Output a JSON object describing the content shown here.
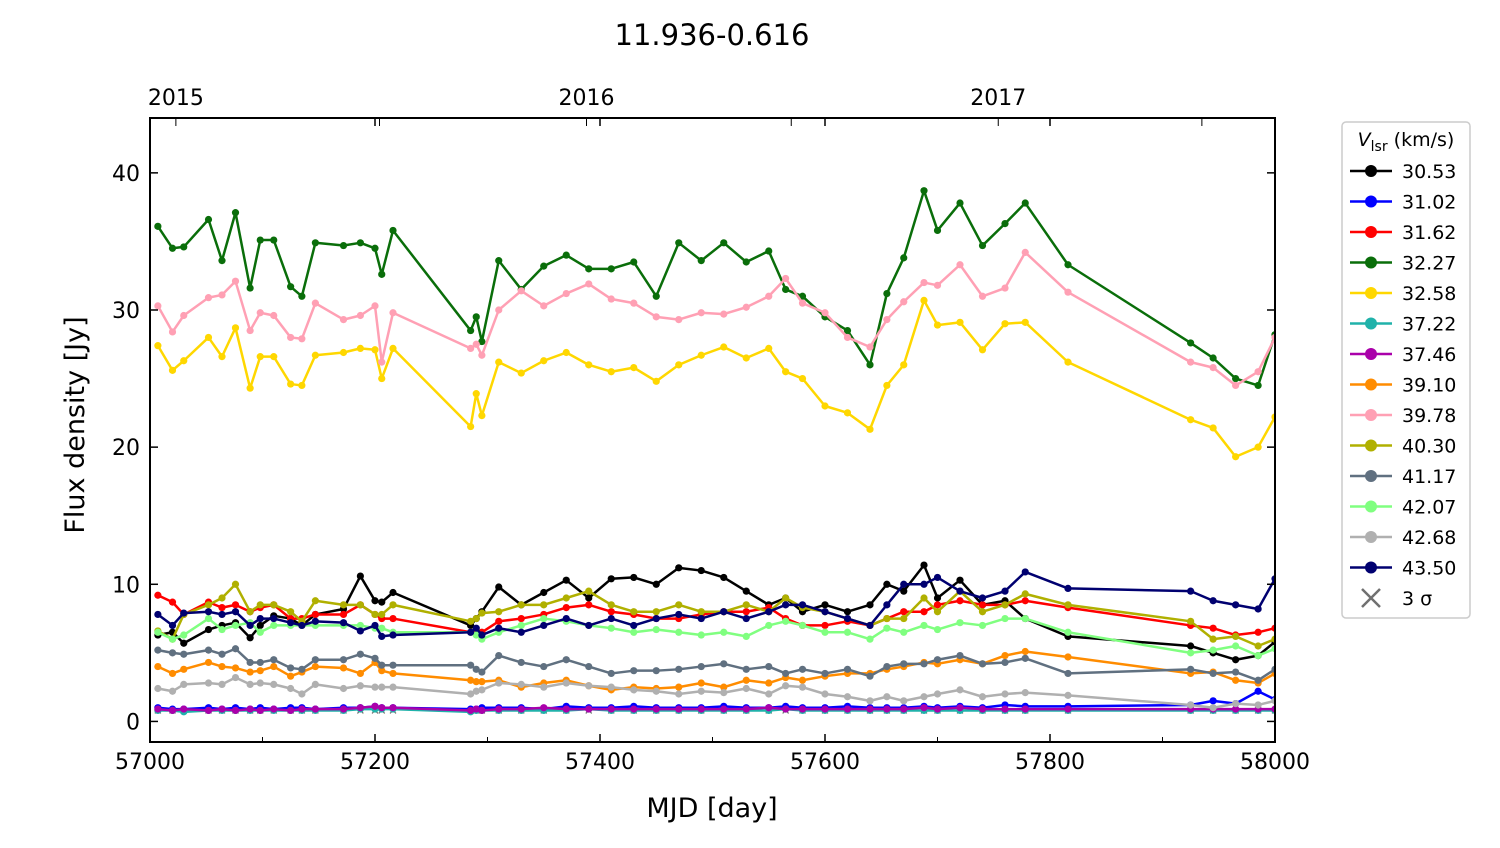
{
  "chart_data": {
    "type": "line",
    "title": "11.936-0.616",
    "xlabel": "MJD [day]",
    "ylabel": "Flux density [Jy]",
    "xlim": [
      57000,
      58000
    ],
    "ylim": [
      -1.5,
      44
    ],
    "xticks": [
      57000,
      57200,
      57400,
      57600,
      57800,
      58000
    ],
    "xticklabels": [
      "57000",
      "57200",
      "57400",
      "57600",
      "57800",
      "58000"
    ],
    "yticks": [
      0,
      10,
      20,
      30,
      40
    ],
    "yticklabels": [
      "0",
      "10",
      "20",
      "30",
      "40"
    ],
    "top_axis": {
      "ticks_mjd": [
        57023,
        57204,
        57388,
        57570,
        57754,
        57935
      ],
      "labels": [
        {
          "mjd": 57023,
          "text": "2015"
        },
        {
          "mjd": 57388,
          "text": "2016"
        },
        {
          "mjd": 57754,
          "text": "2017"
        }
      ]
    },
    "legend": {
      "placement": "outside-right",
      "title_main": "V",
      "title_sub": "lsr",
      "title_units": " (km/s)",
      "sigma_label": "3 σ"
    },
    "x": [
      57007,
      57020,
      57030,
      57052,
      57064,
      57076,
      57089,
      57098,
      57110,
      57125,
      57135,
      57147,
      57172,
      57187,
      57200,
      57206,
      57216,
      57285,
      57290,
      57295,
      57310,
      57330,
      57350,
      57370,
      57390,
      57410,
      57430,
      57450,
      57470,
      57490,
      57510,
      57530,
      57550,
      57565,
      57580,
      57600,
      57620,
      57640,
      57655,
      57670,
      57688,
      57700,
      57720,
      57740,
      57760,
      57778,
      57816,
      57925,
      57945,
      57965,
      57985,
      58000
    ],
    "series": [
      {
        "name": "30.53",
        "color": "#000000",
        "values": [
          6.3,
          6.5,
          5.7,
          6.7,
          7.0,
          7.2,
          6.1,
          7.0,
          7.7,
          7.5,
          7.0,
          7.8,
          8.2,
          10.6,
          8.8,
          8.7,
          9.4,
          7.0,
          7.5,
          8.0,
          9.8,
          8.5,
          9.4,
          10.3,
          9.0,
          10.4,
          10.5,
          10.0,
          11.2,
          11.0,
          10.5,
          9.5,
          8.5,
          9.0,
          8.0,
          8.5,
          8.0,
          8.5,
          10.0,
          9.5,
          11.4,
          9.0,
          10.3,
          8.5,
          8.8,
          7.5,
          6.2,
          5.5,
          5.0,
          4.5,
          4.8,
          5.8
        ]
      },
      {
        "name": "31.02",
        "color": "#0000ff",
        "values": [
          1.0,
          0.9,
          0.9,
          1.0,
          0.9,
          1.0,
          0.9,
          1.0,
          0.9,
          1.0,
          1.0,
          0.9,
          1.0,
          1.0,
          1.1,
          1.0,
          1.0,
          0.9,
          0.9,
          1.0,
          1.0,
          1.0,
          0.9,
          1.1,
          1.0,
          1.0,
          1.1,
          1.0,
          1.0,
          1.0,
          1.1,
          1.0,
          1.0,
          1.1,
          1.0,
          1.0,
          1.1,
          1.0,
          1.0,
          1.0,
          1.1,
          1.0,
          1.1,
          1.0,
          1.2,
          1.1,
          1.1,
          1.2,
          1.5,
          1.3,
          2.2,
          1.6
        ]
      },
      {
        "name": "31.62",
        "color": "#ff0000",
        "values": [
          9.2,
          8.7,
          7.8,
          8.7,
          8.3,
          8.5,
          8.0,
          8.3,
          8.5,
          7.5,
          7.5,
          7.8,
          7.8,
          8.5,
          7.8,
          7.5,
          7.5,
          6.5,
          6.5,
          6.5,
          7.3,
          7.5,
          7.8,
          8.3,
          8.5,
          8.0,
          7.8,
          7.5,
          7.5,
          7.8,
          8.0,
          8.0,
          8.3,
          7.5,
          7.0,
          7.0,
          7.3,
          7.0,
          7.5,
          8.0,
          8.0,
          8.5,
          8.8,
          8.5,
          8.5,
          8.8,
          8.3,
          7.0,
          6.8,
          6.3,
          6.5,
          6.8
        ]
      },
      {
        "name": "32.27",
        "color": "#0a6e0a",
        "values": [
          36.1,
          34.5,
          34.6,
          36.6,
          33.6,
          37.1,
          31.6,
          35.1,
          35.1,
          31.7,
          31.0,
          34.9,
          34.7,
          34.9,
          34.5,
          32.6,
          35.8,
          28.5,
          29.5,
          27.7,
          33.6,
          31.5,
          33.2,
          34.0,
          33.0,
          33.0,
          33.5,
          31.0,
          34.9,
          33.6,
          34.9,
          33.5,
          34.3,
          31.5,
          31.0,
          29.5,
          28.5,
          26.0,
          31.2,
          33.8,
          38.7,
          35.8,
          37.8,
          34.7,
          36.3,
          37.8,
          33.3,
          27.6,
          26.5,
          25.0,
          24.5,
          28.2
        ]
      },
      {
        "name": "32.58",
        "color": "#ffd700",
        "values": [
          27.4,
          25.6,
          26.3,
          28.0,
          26.6,
          28.7,
          24.3,
          26.6,
          26.6,
          24.6,
          24.5,
          26.7,
          26.9,
          27.2,
          27.1,
          25.0,
          27.2,
          21.5,
          23.9,
          22.3,
          26.2,
          25.4,
          26.3,
          26.9,
          26.0,
          25.5,
          25.8,
          24.8,
          26.0,
          26.7,
          27.3,
          26.5,
          27.2,
          25.5,
          25.0,
          23.0,
          22.5,
          21.3,
          24.5,
          26.0,
          30.7,
          28.9,
          29.1,
          27.1,
          29.0,
          29.1,
          26.2,
          22.0,
          21.4,
          19.3,
          20.0,
          22.2
        ]
      },
      {
        "name": "37.22",
        "color": "#20b2aa",
        "values": [
          0.8,
          0.8,
          0.7,
          0.8,
          0.8,
          0.8,
          0.8,
          0.8,
          0.8,
          0.8,
          0.8,
          0.8,
          0.8,
          0.9,
          0.9,
          0.9,
          0.9,
          0.7,
          0.8,
          0.8,
          0.8,
          0.8,
          0.8,
          0.8,
          0.9,
          0.8,
          0.8,
          0.8,
          0.8,
          0.8,
          0.8,
          0.8,
          0.8,
          0.9,
          0.8,
          0.8,
          0.8,
          0.8,
          0.8,
          0.8,
          0.8,
          0.8,
          0.8,
          0.8,
          0.8,
          0.8,
          0.8,
          0.8,
          0.8,
          0.8,
          0.8,
          0.8
        ]
      },
      {
        "name": "37.46",
        "color": "#aa00aa",
        "values": [
          0.9,
          0.8,
          0.9,
          0.8,
          0.9,
          0.8,
          0.9,
          0.8,
          0.9,
          0.8,
          0.9,
          0.9,
          0.9,
          1.0,
          1.1,
          1.0,
          1.0,
          0.8,
          0.9,
          0.8,
          0.9,
          0.9,
          1.0,
          0.9,
          0.9,
          0.9,
          0.9,
          0.9,
          0.9,
          0.9,
          0.9,
          0.9,
          1.0,
          0.9,
          0.9,
          0.9,
          0.9,
          0.9,
          0.9,
          0.9,
          1.0,
          0.9,
          1.0,
          0.9,
          0.9,
          0.9,
          0.9,
          0.9,
          0.9,
          0.9,
          0.9,
          0.9
        ]
      },
      {
        "name": "39.10",
        "color": "#ff8c00",
        "values": [
          4.0,
          3.5,
          3.8,
          4.3,
          4.0,
          3.9,
          3.6,
          3.7,
          4.0,
          3.3,
          3.6,
          4.0,
          3.9,
          3.5,
          4.3,
          3.7,
          3.5,
          3.0,
          2.9,
          2.9,
          3.0,
          2.5,
          2.8,
          3.0,
          2.6,
          2.3,
          2.5,
          2.4,
          2.5,
          2.8,
          2.5,
          3.0,
          2.8,
          3.2,
          3.0,
          3.3,
          3.5,
          3.5,
          3.8,
          4.0,
          4.3,
          4.2,
          4.5,
          4.2,
          4.8,
          5.1,
          4.7,
          3.5,
          3.6,
          3.0,
          2.8,
          3.5
        ]
      },
      {
        "name": "39.78",
        "color": "#ffa0b4",
        "values": [
          30.3,
          28.4,
          29.6,
          30.9,
          31.1,
          32.1,
          28.5,
          29.8,
          29.6,
          28.0,
          27.9,
          30.5,
          29.3,
          29.6,
          30.3,
          26.2,
          29.8,
          27.2,
          27.5,
          26.7,
          30.0,
          31.4,
          30.3,
          31.2,
          31.9,
          30.8,
          30.5,
          29.5,
          29.3,
          29.8,
          29.7,
          30.2,
          31.0,
          32.3,
          30.5,
          29.8,
          28.0,
          27.3,
          29.3,
          30.6,
          32.0,
          31.8,
          33.3,
          31.0,
          31.6,
          34.2,
          31.3,
          26.2,
          25.8,
          24.5,
          25.5,
          28.0
        ]
      },
      {
        "name": "40.30",
        "color": "#b0b000",
        "values": [
          6.6,
          6.0,
          7.8,
          8.5,
          9.0,
          10.0,
          8.0,
          8.5,
          8.5,
          8.0,
          7.3,
          8.8,
          8.5,
          8.5,
          7.8,
          7.8,
          8.5,
          7.3,
          7.5,
          7.9,
          8.0,
          8.5,
          8.5,
          9.0,
          9.5,
          8.5,
          8.0,
          8.0,
          8.5,
          8.0,
          8.0,
          8.5,
          8.0,
          9.0,
          8.3,
          8.0,
          7.5,
          7.0,
          7.5,
          7.5,
          9.0,
          8.0,
          9.5,
          8.0,
          8.5,
          9.3,
          8.5,
          7.3,
          6.0,
          6.2,
          5.5,
          6.0
        ]
      },
      {
        "name": "41.17",
        "color": "#607080",
        "values": [
          5.2,
          5.0,
          4.9,
          5.2,
          4.9,
          5.3,
          4.3,
          4.3,
          4.5,
          3.9,
          3.8,
          4.5,
          4.5,
          4.9,
          4.6,
          4.1,
          4.1,
          4.1,
          3.8,
          3.6,
          4.8,
          4.3,
          4.0,
          4.5,
          4.0,
          3.5,
          3.7,
          3.7,
          3.8,
          4.0,
          4.2,
          3.8,
          4.0,
          3.5,
          3.8,
          3.5,
          3.8,
          3.3,
          4.0,
          4.2,
          4.2,
          4.5,
          4.8,
          4.2,
          4.3,
          4.6,
          3.5,
          3.8,
          3.5,
          3.6,
          3.0,
          3.8
        ]
      },
      {
        "name": "42.07",
        "color": "#80ff80",
        "values": [
          6.5,
          6.0,
          6.3,
          7.5,
          6.7,
          7.0,
          7.2,
          6.5,
          7.0,
          7.0,
          7.0,
          7.0,
          7.0,
          7.0,
          6.8,
          6.8,
          6.5,
          6.5,
          6.3,
          6.0,
          6.5,
          7.0,
          7.5,
          7.3,
          7.0,
          6.8,
          6.5,
          6.7,
          6.5,
          6.3,
          6.5,
          6.2,
          7.0,
          7.3,
          7.0,
          6.5,
          6.5,
          6.0,
          6.8,
          6.5,
          7.0,
          6.7,
          7.2,
          7.0,
          7.5,
          7.5,
          6.5,
          5.0,
          5.2,
          5.5,
          4.8,
          5.3
        ]
      },
      {
        "name": "42.68",
        "color": "#b0b0b0",
        "values": [
          2.4,
          2.2,
          2.7,
          2.8,
          2.7,
          3.2,
          2.7,
          2.8,
          2.7,
          2.4,
          2.0,
          2.7,
          2.4,
          2.6,
          2.5,
          2.5,
          2.5,
          2.0,
          2.2,
          2.3,
          2.8,
          2.7,
          2.5,
          2.8,
          2.6,
          2.5,
          2.3,
          2.2,
          2.0,
          2.2,
          2.1,
          2.4,
          2.0,
          2.6,
          2.5,
          2.0,
          1.8,
          1.5,
          1.8,
          1.5,
          1.8,
          2.0,
          2.3,
          1.8,
          2.0,
          2.1,
          1.9,
          1.2,
          1.0,
          1.3,
          1.2,
          1.5
        ]
      },
      {
        "name": "43.50",
        "color": "#000070",
        "values": [
          7.8,
          7.0,
          7.9,
          8.0,
          7.8,
          8.0,
          7.0,
          7.5,
          7.5,
          7.2,
          7.0,
          7.3,
          7.2,
          6.6,
          7.0,
          6.2,
          6.3,
          6.5,
          6.8,
          6.3,
          6.8,
          6.5,
          7.0,
          7.5,
          7.0,
          7.5,
          7.0,
          7.5,
          7.8,
          7.5,
          8.0,
          7.5,
          8.0,
          8.5,
          8.5,
          8.0,
          7.5,
          7.0,
          8.5,
          10.0,
          10.0,
          10.5,
          9.5,
          9.0,
          9.5,
          10.9,
          9.7,
          9.5,
          8.8,
          8.5,
          8.2,
          10.4
        ]
      }
    ],
    "sigma3": {
      "name": "3 σ",
      "color": "#707070",
      "value": 0.8
    }
  }
}
